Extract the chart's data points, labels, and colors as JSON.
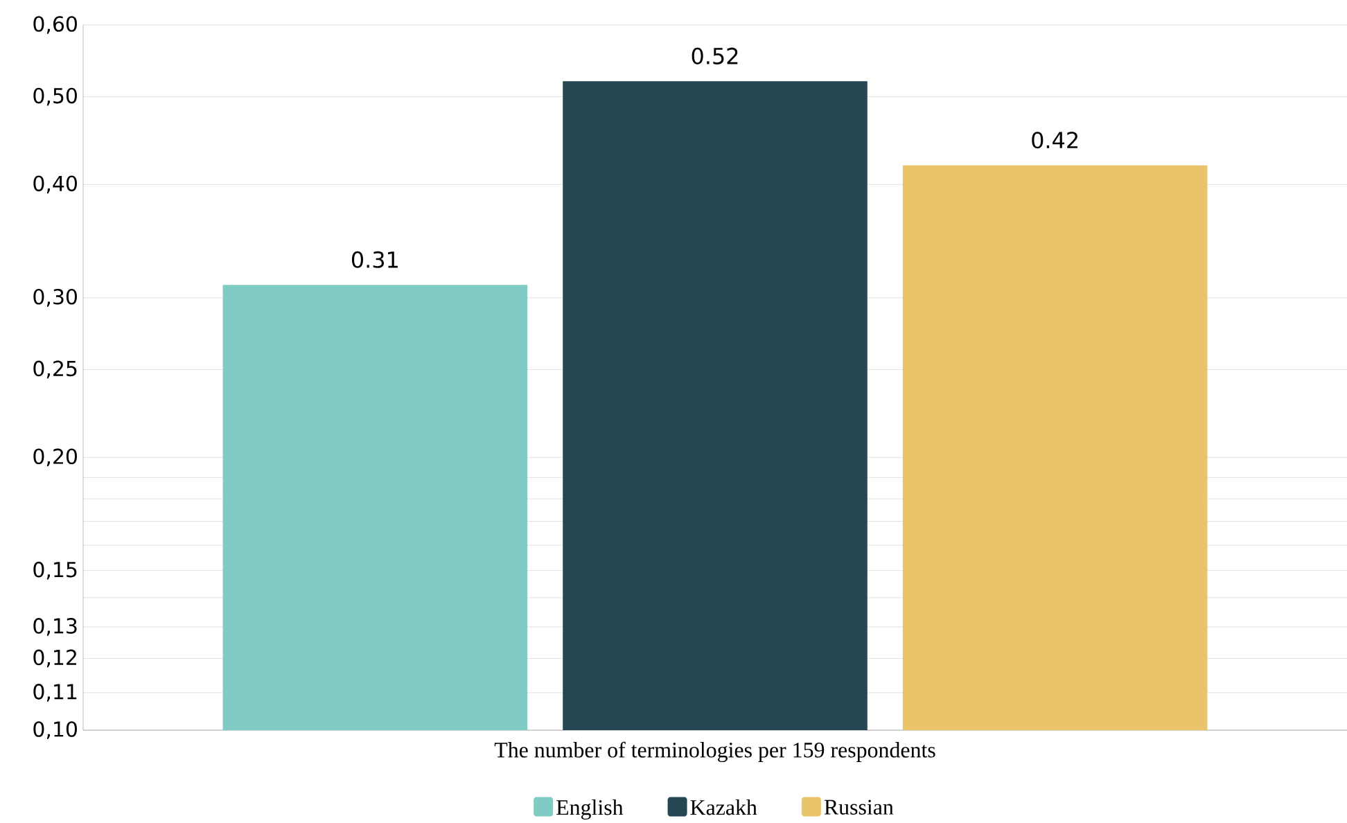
{
  "chart_data": {
    "type": "bar",
    "xlabel": "The number of terminologies per 159 respondents",
    "categories": [
      null
    ],
    "series": [
      {
        "name": "English",
        "color": "#80cbc4",
        "values": [
          0.31
        ]
      },
      {
        "name": "Kazakh",
        "color": "#264653",
        "values": [
          0.52
        ]
      },
      {
        "name": "Russian",
        "color": "#e9c46a",
        "values": [
          0.42
        ]
      }
    ],
    "log": "y",
    "ylim": [
      0.1,
      0.6
    ],
    "yticks": [
      {
        "value": 0.1,
        "label": "0,10"
      },
      {
        "value": 0.11,
        "label": "0,11"
      },
      {
        "value": 0.12,
        "label": "0,12"
      },
      {
        "value": 0.13,
        "label": "0,13"
      },
      {
        "value": 0.14,
        "label": null
      },
      {
        "value": 0.15,
        "label": "0,15"
      },
      {
        "value": 0.16,
        "label": null
      },
      {
        "value": 0.17,
        "label": null
      },
      {
        "value": 0.18,
        "label": null
      },
      {
        "value": 0.19,
        "label": null
      },
      {
        "value": 0.2,
        "label": "0,20"
      },
      {
        "value": 0.25,
        "label": "0,25"
      },
      {
        "value": 0.3,
        "label": "0,30"
      },
      {
        "value": 0.4,
        "label": "0,40"
      },
      {
        "value": 0.5,
        "label": "0,50"
      },
      {
        "value": 0.6,
        "label": "0,60"
      }
    ],
    "grid": "y",
    "legend": "bottom",
    "data_labels": true
  }
}
